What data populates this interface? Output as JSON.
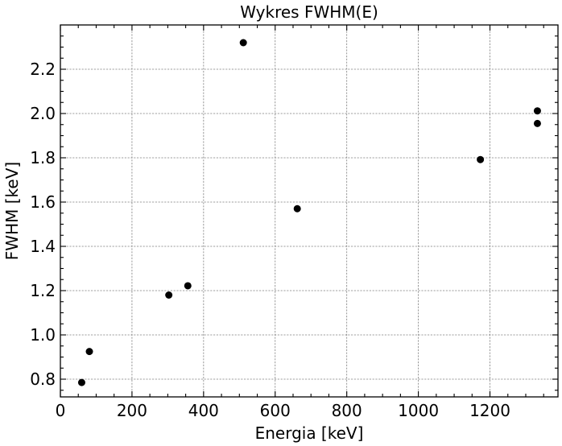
{
  "chart_data": {
    "type": "scatter",
    "title": "Wykres FWHM(E)",
    "xlabel": "Energia [keV]",
    "ylabel": "FWHM [keV]",
    "xlim": [
      0,
      1390
    ],
    "ylim": [
      0.72,
      2.4
    ],
    "x_ticks": [
      0,
      200,
      400,
      600,
      800,
      1000,
      1200
    ],
    "y_ticks": [
      0.8,
      1.0,
      1.2,
      1.4,
      1.6,
      1.8,
      2.0,
      2.2
    ],
    "x_tick_labels": [
      "0",
      "200",
      "400",
      "600",
      "800",
      "1000",
      "1200"
    ],
    "y_tick_labels": [
      "0.8",
      "1.0",
      "1.2",
      "1.4",
      "1.6",
      "1.8",
      "2.0",
      "2.2"
    ],
    "grid": true,
    "marker_color": "#000000",
    "points": [
      {
        "x": 59.5,
        "y": 0.785
      },
      {
        "x": 81,
        "y": 0.925
      },
      {
        "x": 302.9,
        "y": 1.18
      },
      {
        "x": 356,
        "y": 1.222
      },
      {
        "x": 511,
        "y": 2.32
      },
      {
        "x": 661.7,
        "y": 1.57
      },
      {
        "x": 1173.2,
        "y": 1.792
      },
      {
        "x": 1332.5,
        "y": 1.955
      },
      {
        "x": 1332.5,
        "y": 2.012
      }
    ]
  }
}
